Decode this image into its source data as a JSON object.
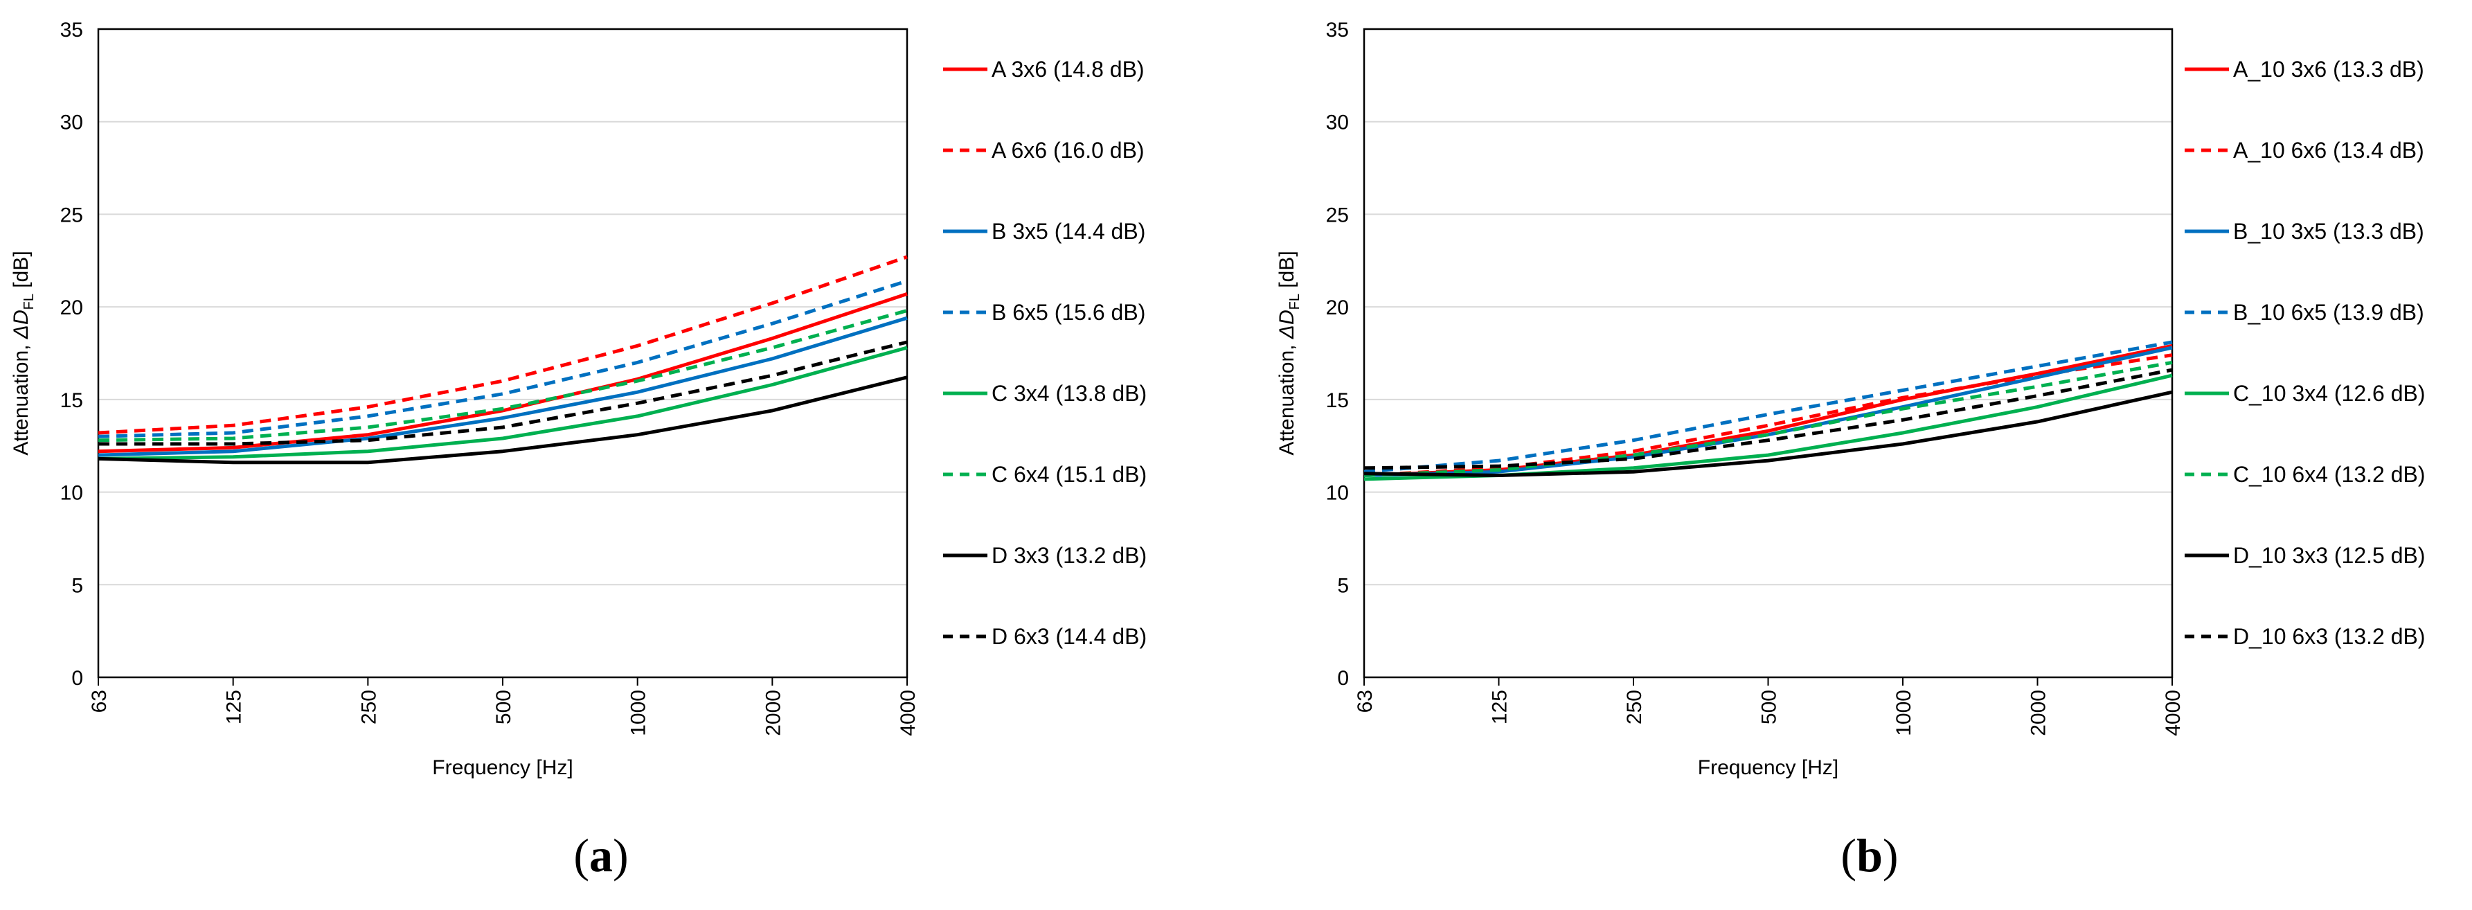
{
  "chart_data": [
    {
      "type": "line",
      "caption_open": "(",
      "caption_letter": "a",
      "caption_close": ")",
      "xlabel": "Frequency [Hz]",
      "ylabel_main": "Attenuation, ",
      "ylabel_delta": "ΔD",
      "ylabel_sub": "FL",
      "ylabel_unit": "  [dB]",
      "categories": [
        "63",
        "125",
        "250",
        "500",
        "1000",
        "2000",
        "4000"
      ],
      "yticks": [
        "0",
        "5",
        "10",
        "15",
        "20",
        "25",
        "30",
        "35"
      ],
      "ylim": [
        0,
        35
      ],
      "grid": true,
      "legend_position": "right",
      "series": [
        {
          "name": "A 3x6 (14.8 dB)",
          "color": "#ff0000",
          "dash": "solid",
          "values": [
            12.2,
            12.4,
            13.1,
            14.4,
            16.1,
            18.3,
            20.7
          ]
        },
        {
          "name": "A 6x6 (16.0 dB)",
          "color": "#ff0000",
          "dash": "dashed",
          "values": [
            13.2,
            13.6,
            14.6,
            16.0,
            17.9,
            20.2,
            22.7
          ]
        },
        {
          "name": "B 3x5 (14.4 dB)",
          "color": "#0070c0",
          "dash": "solid",
          "values": [
            12.0,
            12.2,
            12.9,
            14.0,
            15.4,
            17.2,
            19.4
          ]
        },
        {
          "name": "B 6x5 (15.6 dB)",
          "color": "#0070c0",
          "dash": "dashed",
          "values": [
            13.0,
            13.2,
            14.1,
            15.3,
            17.0,
            19.1,
            21.4
          ]
        },
        {
          "name": "C 3x4 (13.8 dB)",
          "color": "#00b050",
          "dash": "solid",
          "values": [
            11.8,
            11.9,
            12.2,
            12.9,
            14.1,
            15.8,
            17.8
          ]
        },
        {
          "name": "C 6x4 (15.1 dB)",
          "color": "#00b050",
          "dash": "dashed",
          "values": [
            12.8,
            12.9,
            13.5,
            14.5,
            16.0,
            17.8,
            19.8
          ]
        },
        {
          "name": "D 3x3 (13.2 dB)",
          "color": "#000000",
          "dash": "solid",
          "values": [
            11.8,
            11.6,
            11.6,
            12.2,
            13.1,
            14.4,
            16.2
          ]
        },
        {
          "name": "D 6x3 (14.4 dB)",
          "color": "#000000",
          "dash": "dashed",
          "values": [
            12.6,
            12.6,
            12.8,
            13.5,
            14.8,
            16.3,
            18.1
          ]
        }
      ]
    },
    {
      "type": "line",
      "caption_open": "(",
      "caption_letter": "b",
      "caption_close": ")",
      "xlabel": "Frequency [Hz]",
      "ylabel_main": "Attenuation, ",
      "ylabel_delta": "ΔD",
      "ylabel_sub": "FL",
      "ylabel_unit": " [dB]",
      "categories": [
        "63",
        "125",
        "250",
        "500",
        "1000",
        "2000",
        "4000"
      ],
      "yticks": [
        "0",
        "5",
        "10",
        "15",
        "20",
        "25",
        "30",
        "35"
      ],
      "ylim": [
        0,
        35
      ],
      "grid": true,
      "legend_position": "right",
      "series": [
        {
          "name": "A_10 3x6 (13.3 dB)",
          "color": "#ff0000",
          "dash": "solid",
          "values": [
            10.9,
            11.2,
            12.0,
            13.3,
            15.0,
            16.4,
            17.9
          ]
        },
        {
          "name": "A_10 6x6 (13.4 dB)",
          "color": "#ff0000",
          "dash": "dashed",
          "values": [
            10.9,
            11.3,
            12.2,
            13.6,
            15.1,
            16.3,
            17.4
          ]
        },
        {
          "name": "B_10 3x5 (13.3 dB)",
          "color": "#0070c0",
          "dash": "solid",
          "values": [
            10.9,
            11.1,
            11.9,
            13.1,
            14.6,
            16.2,
            17.8
          ]
        },
        {
          "name": "B_10 6x5 (13.9 dB)",
          "color": "#0070c0",
          "dash": "dashed",
          "values": [
            11.1,
            11.7,
            12.8,
            14.2,
            15.5,
            16.8,
            18.1
          ]
        },
        {
          "name": "C_10 3x4 (12.6 dB)",
          "color": "#00b050",
          "dash": "solid",
          "values": [
            10.7,
            10.9,
            11.3,
            12.0,
            13.2,
            14.6,
            16.3
          ]
        },
        {
          "name": "C_10 6x4 (13.2 dB)",
          "color": "#00b050",
          "dash": "dashed",
          "values": [
            10.9,
            11.2,
            12.0,
            13.1,
            14.5,
            15.7,
            17.0
          ]
        },
        {
          "name": "D_10 3x3 (12.5 dB)",
          "color": "#000000",
          "dash": "solid",
          "values": [
            11.0,
            10.9,
            11.1,
            11.7,
            12.6,
            13.8,
            15.4
          ]
        },
        {
          "name": "D_10 6x3 (13.2 dB)",
          "color": "#000000",
          "dash": "dashed",
          "values": [
            11.3,
            11.4,
            11.8,
            12.8,
            13.9,
            15.2,
            16.6
          ]
        }
      ]
    }
  ]
}
